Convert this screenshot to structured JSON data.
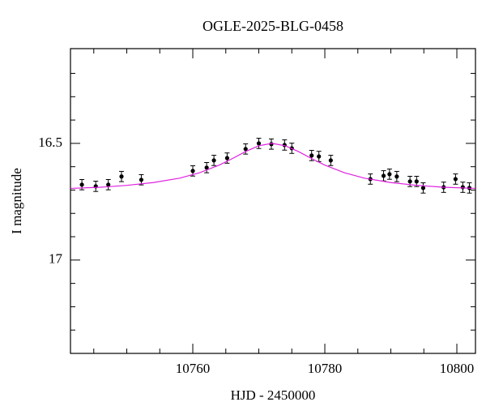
{
  "chart_data": {
    "type": "scatter",
    "title": "OGLE-2025-BLG-0458",
    "x_label": "HJD - 2450000",
    "y_label": "I magnitude",
    "xlim": [
      10741.47,
      10802.82
    ],
    "ylim": [
      17.4,
      16.094
    ],
    "xticks": [
      10760,
      10780,
      10800
    ],
    "xminorticks": [
      10745,
      10750,
      10755,
      10765,
      10770,
      10775,
      10785,
      10790,
      10795
    ],
    "yticks": [
      16.5,
      17
    ],
    "yminorticks": [
      16.2,
      16.3,
      16.4,
      16.6,
      16.7,
      16.8,
      16.9,
      17.1,
      17.2,
      17.3
    ],
    "series": [
      {
        "color": "#000000",
        "x": [
          10743.2,
          10745.3,
          10747.2,
          10749.2,
          10752.2,
          10760.0,
          10762.1,
          10763.2,
          10765.2,
          10768.0,
          10770.0,
          10771.9,
          10773.9,
          10775.0,
          10778.0,
          10779.1,
          10780.9,
          10786.9,
          10788.9,
          10789.8,
          10790.9,
          10792.9,
          10793.9,
          10794.9,
          10798.0,
          10799.8,
          10800.9,
          10801.9
        ],
        "values": [
          16.677,
          16.684,
          16.677,
          16.642,
          16.656,
          16.618,
          16.604,
          16.573,
          16.563,
          16.524,
          16.5,
          16.503,
          16.507,
          16.521,
          16.552,
          16.556,
          16.573,
          16.653,
          16.639,
          16.632,
          16.642,
          16.663,
          16.663,
          16.691,
          16.688,
          16.653,
          16.688,
          16.691
        ],
        "errors": [
          0.022,
          0.022,
          0.022,
          0.022,
          0.022,
          0.022,
          0.022,
          0.022,
          0.022,
          0.022,
          0.022,
          0.022,
          0.022,
          0.022,
          0.022,
          0.022,
          0.022,
          0.022,
          0.022,
          0.022,
          0.022,
          0.022,
          0.022,
          0.022,
          0.022,
          0.022,
          0.022,
          0.022
        ]
      },
      {
        "type": "line",
        "color": "#e020e0",
        "x": [
          10741.5,
          10746,
          10750,
          10754,
          10758,
          10761,
          10764,
          10766,
          10768,
          10770,
          10772,
          10774,
          10776,
          10778,
          10780,
          10783,
          10786,
          10790,
          10794,
          10798,
          10802.8
        ],
        "values": [
          16.693,
          16.688,
          16.68,
          16.668,
          16.649,
          16.626,
          16.593,
          16.565,
          16.535,
          16.51,
          16.5,
          16.51,
          16.535,
          16.565,
          16.593,
          16.626,
          16.649,
          16.668,
          16.68,
          16.688,
          16.693
        ]
      }
    ]
  }
}
